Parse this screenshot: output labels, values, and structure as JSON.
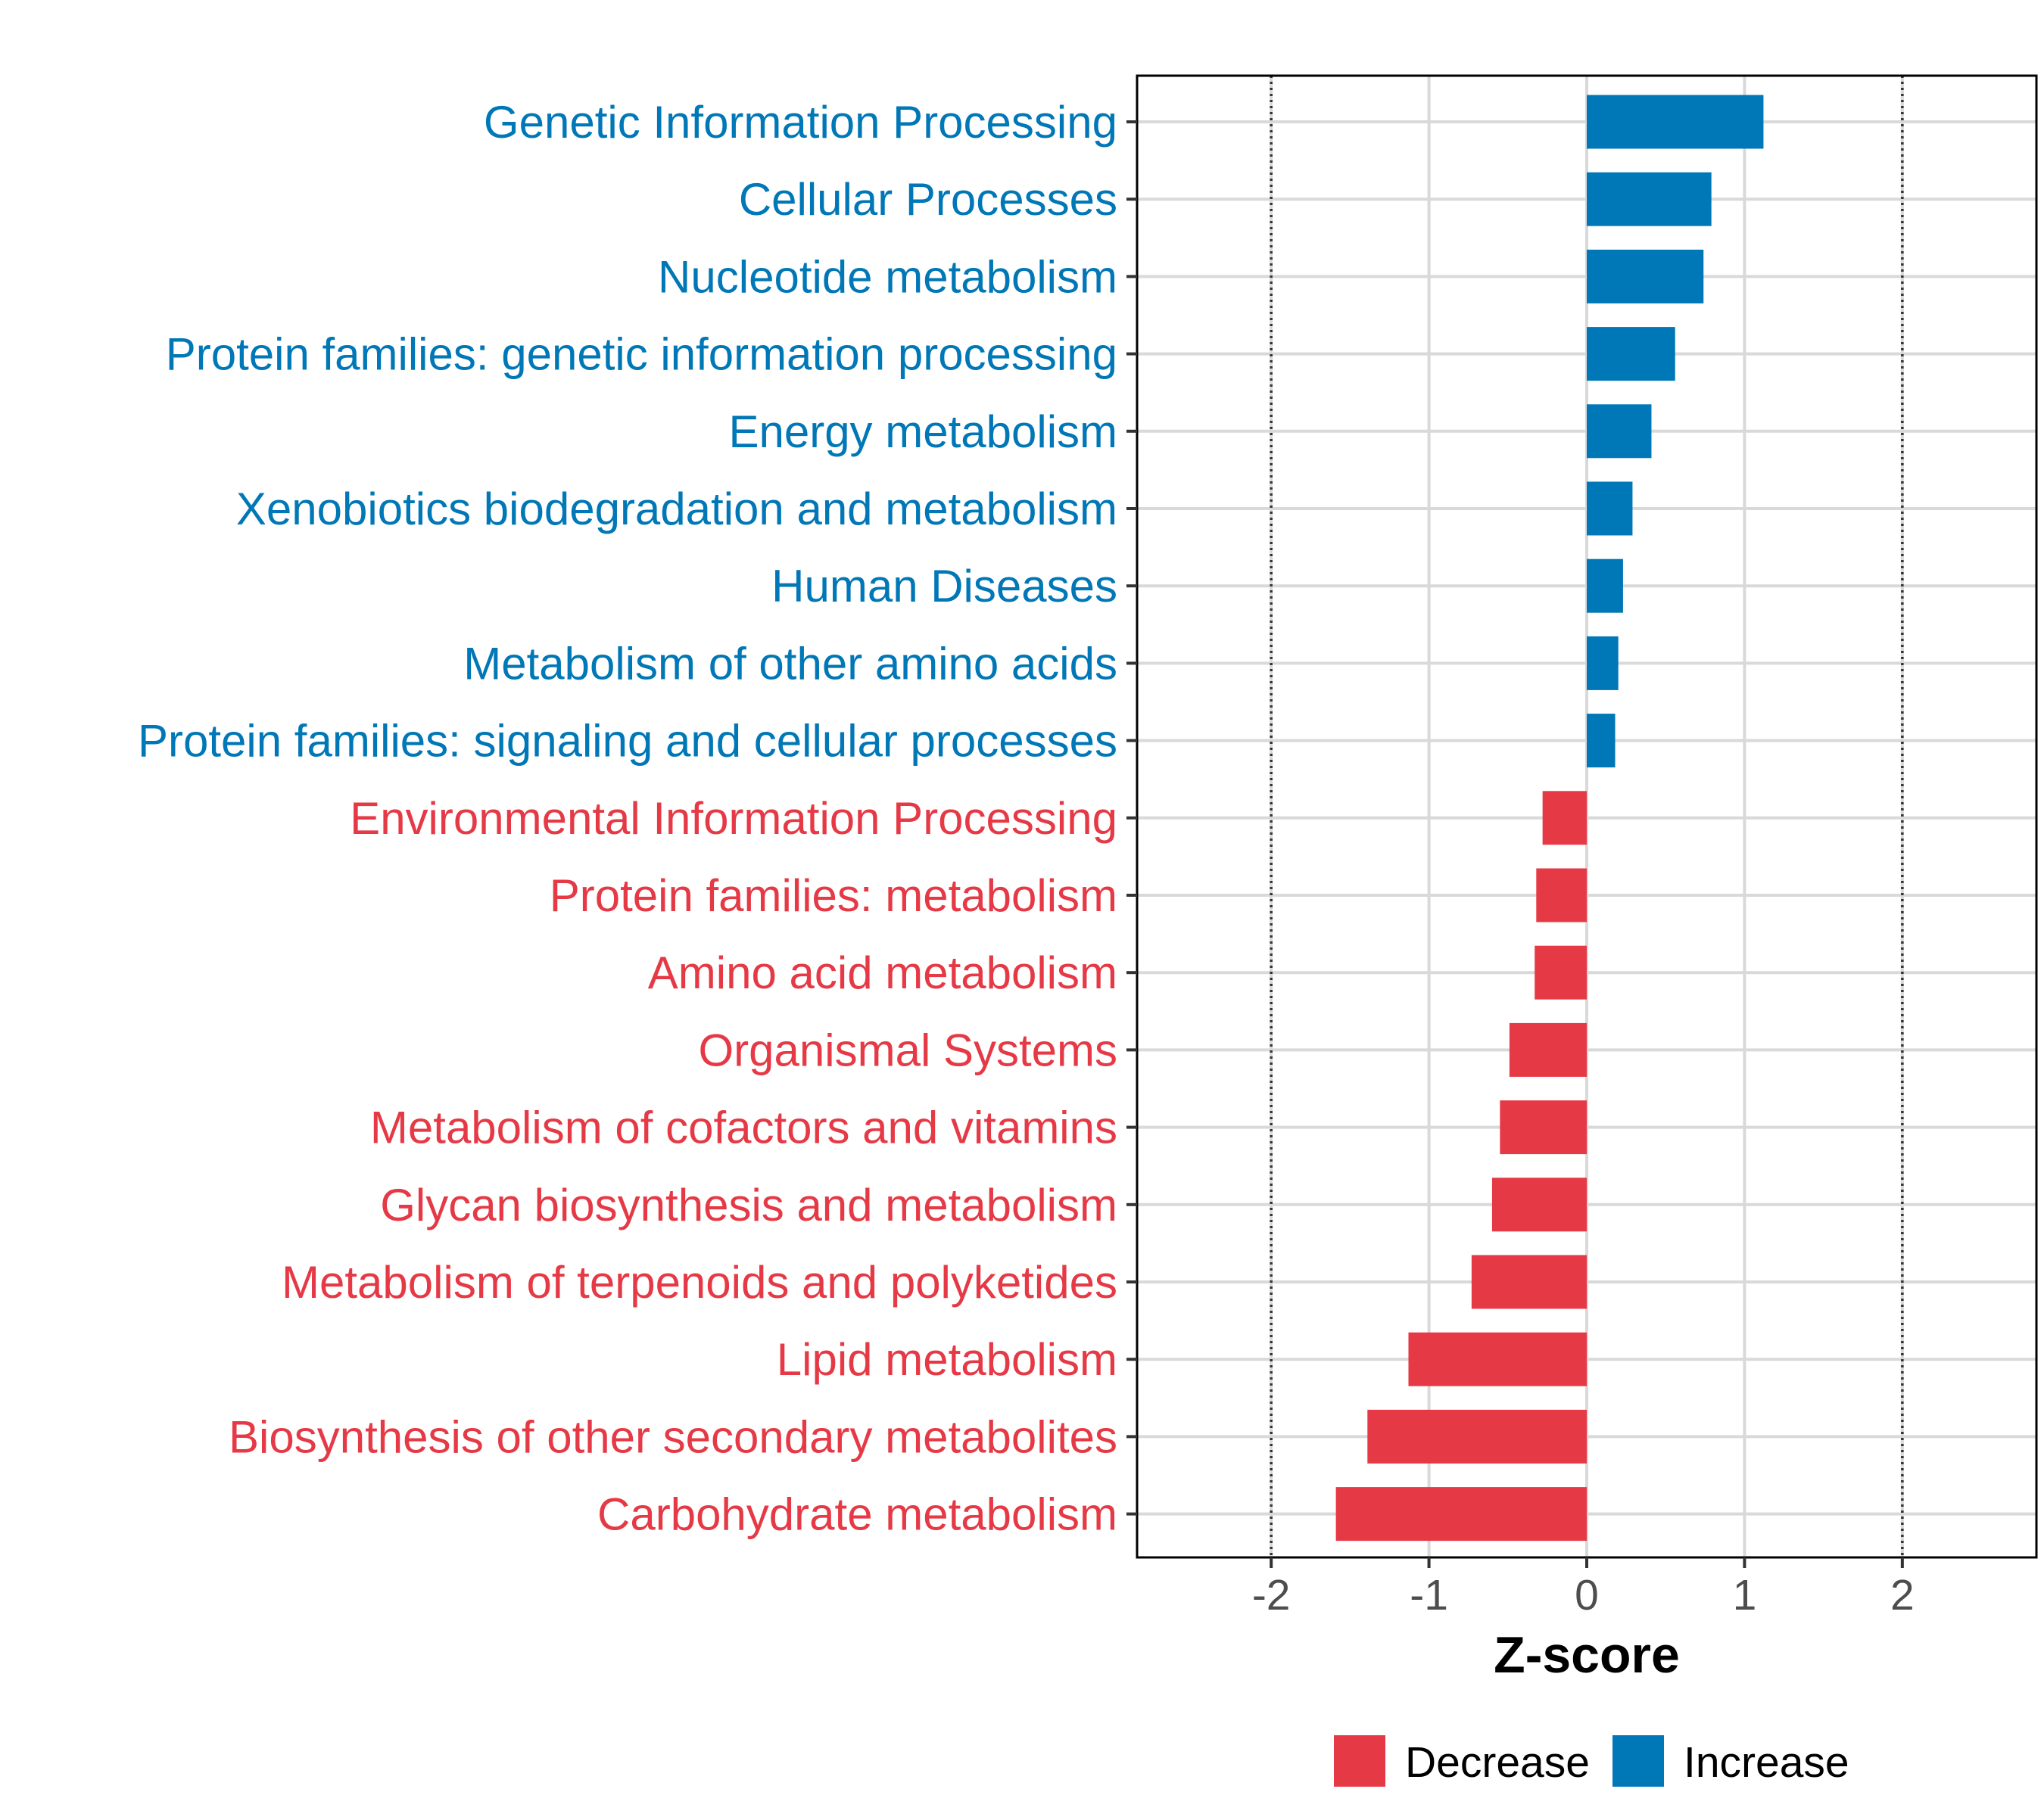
{
  "chart_data": {
    "type": "bar",
    "orientation": "horizontal",
    "title": "",
    "xlabel": "Z-score",
    "ylabel": "",
    "xlim": [
      -2.85,
      2.85
    ],
    "xticks": [
      -2,
      -1,
      0,
      1,
      2
    ],
    "xtick_labels": [
      "-2",
      "-1",
      "0",
      "1",
      "2"
    ],
    "reference_lines": [
      -2,
      2
    ],
    "grid": true,
    "colors": {
      "Decrease": "#e63946",
      "Increase": "#0077b6"
    },
    "legend": {
      "placement": "bottom-center",
      "entries": [
        {
          "label": "Decrease",
          "group": "Decrease"
        },
        {
          "label": "Increase",
          "group": "Increase"
        }
      ]
    },
    "bars": [
      {
        "category": "Genetic Information Processing",
        "value": 1.12,
        "group": "Increase"
      },
      {
        "category": "Cellular Processes",
        "value": 0.79,
        "group": "Increase"
      },
      {
        "category": "Nucleotide metabolism",
        "value": 0.74,
        "group": "Increase"
      },
      {
        "category": "Protein families: genetic information processing",
        "value": 0.56,
        "group": "Increase"
      },
      {
        "category": "Energy metabolism",
        "value": 0.41,
        "group": "Increase"
      },
      {
        "category": "Xenobiotics biodegradation and metabolism",
        "value": 0.29,
        "group": "Increase"
      },
      {
        "category": "Human Diseases",
        "value": 0.23,
        "group": "Increase"
      },
      {
        "category": "Metabolism of other amino acids",
        "value": 0.2,
        "group": "Increase"
      },
      {
        "category": "Protein families: signaling and cellular processes",
        "value": 0.18,
        "group": "Increase"
      },
      {
        "category": "Environmental Information Processing",
        "value": -0.28,
        "group": "Decrease"
      },
      {
        "category": "Protein families: metabolism",
        "value": -0.32,
        "group": "Decrease"
      },
      {
        "category": "Amino acid metabolism",
        "value": -0.33,
        "group": "Decrease"
      },
      {
        "category": "Organismal Systems",
        "value": -0.49,
        "group": "Decrease"
      },
      {
        "category": "Metabolism of cofactors and vitamins",
        "value": -0.55,
        "group": "Decrease"
      },
      {
        "category": "Glycan biosynthesis and metabolism",
        "value": -0.6,
        "group": "Decrease"
      },
      {
        "category": "Metabolism of terpenoids and polyketides",
        "value": -0.73,
        "group": "Decrease"
      },
      {
        "category": "Lipid metabolism",
        "value": -1.13,
        "group": "Decrease"
      },
      {
        "category": "Biosynthesis of other secondary metabolites",
        "value": -1.39,
        "group": "Decrease"
      },
      {
        "category": "Carbohydrate metabolism",
        "value": -1.59,
        "group": "Decrease"
      }
    ]
  }
}
